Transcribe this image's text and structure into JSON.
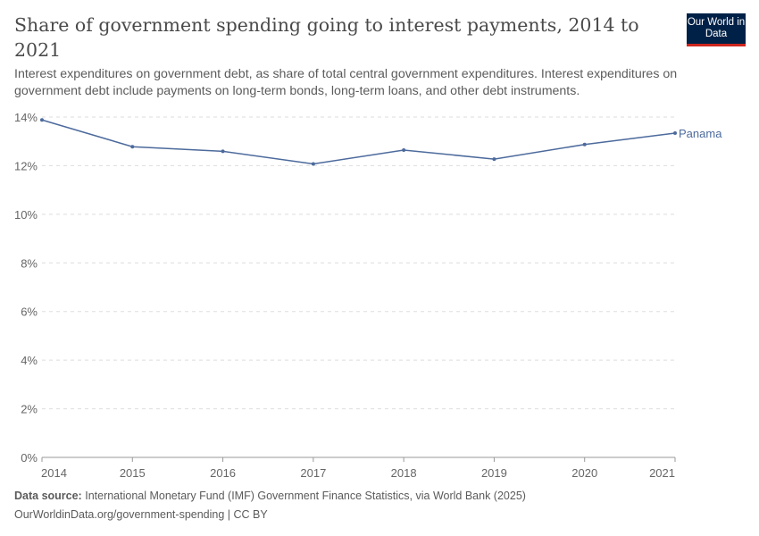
{
  "header": {
    "title": "Share of government spending going to interest payments, 2014 to 2021",
    "subtitle": "Interest expenditures on government debt, as share of total central government expenditures. Interest expenditures on government debt include payments on long-term bonds, long-term loans, and other debt instruments.",
    "logo": "Our World in Data"
  },
  "footer": {
    "source_label": "Data source:",
    "source": "International Monetary Fund (IMF) Government Finance Statistics, via World Bank (2025)",
    "url": "OurWorldinData.org/government-spending | CC BY"
  },
  "chart_data": {
    "type": "line",
    "title": "Share of government spending going to interest payments, 2014 to 2021",
    "x": [
      2014,
      2015,
      2016,
      2017,
      2018,
      2019,
      2020,
      2021
    ],
    "x_tick_labels": [
      "2014",
      "2015",
      "2016",
      "2017",
      "2018",
      "2019",
      "2020",
      "2021"
    ],
    "y_tick_labels": [
      "0%",
      "2%",
      "4%",
      "6%",
      "8%",
      "10%",
      "12%",
      "14%"
    ],
    "y_ticks": [
      0,
      2,
      4,
      6,
      8,
      10,
      12,
      14
    ],
    "ylim": [
      0,
      14
    ],
    "grid": true,
    "series": [
      {
        "name": "Panama",
        "color": "#4c6a9c",
        "values": [
          13.88,
          12.78,
          12.59,
          12.07,
          12.64,
          12.27,
          12.87,
          13.34
        ]
      }
    ]
  }
}
